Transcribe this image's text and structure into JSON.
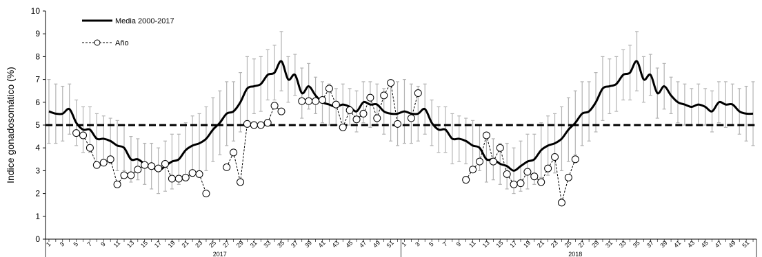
{
  "chart_data": {
    "type": "line",
    "ylabel": "Indice gonadosomático (%)",
    "xlabel": "",
    "ylim": [
      0,
      10
    ],
    "yticks": [
      "0",
      "1",
      "2",
      "3",
      "4",
      "5",
      "6",
      "7",
      "8",
      "9",
      "10"
    ],
    "x_range": [
      1,
      104
    ],
    "year_labels": [
      {
        "label": "2017",
        "week_index": 26
      },
      {
        "label": "2018",
        "week_index": 78
      }
    ],
    "x_tick_labels": [
      {
        "week": 1,
        "label": "1"
      },
      {
        "week": 3,
        "label": "3"
      },
      {
        "week": 5,
        "label": "5"
      },
      {
        "week": 7,
        "label": "7"
      },
      {
        "week": 9,
        "label": "9"
      },
      {
        "week": 11,
        "label": "11"
      },
      {
        "week": 13,
        "label": "13"
      },
      {
        "week": 15,
        "label": "15"
      },
      {
        "week": 17,
        "label": "17"
      },
      {
        "week": 19,
        "label": "19"
      },
      {
        "week": 21,
        "label": "21"
      },
      {
        "week": 23,
        "label": "23"
      },
      {
        "week": 25,
        "label": "25"
      },
      {
        "week": 27,
        "label": "27"
      },
      {
        "week": 29,
        "label": "29"
      },
      {
        "week": 31,
        "label": "31"
      },
      {
        "week": 33,
        "label": "33"
      },
      {
        "week": 35,
        "label": "35"
      },
      {
        "week": 37,
        "label": "37"
      },
      {
        "week": 39,
        "label": "39"
      },
      {
        "week": 41,
        "label": "41"
      },
      {
        "week": 43,
        "label": "43"
      },
      {
        "week": 45,
        "label": "45"
      },
      {
        "week": 47,
        "label": "47"
      },
      {
        "week": 49,
        "label": "49"
      },
      {
        "week": 51,
        "label": "51"
      },
      {
        "week": 53,
        "label": "1"
      },
      {
        "week": 55,
        "label": "3"
      },
      {
        "week": 57,
        "label": "5"
      },
      {
        "week": 59,
        "label": "7"
      },
      {
        "week": 61,
        "label": "9"
      },
      {
        "week": 63,
        "label": "11"
      },
      {
        "week": 65,
        "label": "13"
      },
      {
        "week": 67,
        "label": "15"
      },
      {
        "week": 69,
        "label": "17"
      },
      {
        "week": 71,
        "label": "19"
      },
      {
        "week": 73,
        "label": "21"
      },
      {
        "week": 75,
        "label": "23"
      },
      {
        "week": 77,
        "label": "25"
      },
      {
        "week": 79,
        "label": "27"
      },
      {
        "week": 81,
        "label": "29"
      },
      {
        "week": 83,
        "label": "31"
      },
      {
        "week": 85,
        "label": "33"
      },
      {
        "week": 87,
        "label": "35"
      },
      {
        "week": 89,
        "label": "37"
      },
      {
        "week": 91,
        "label": "39"
      },
      {
        "week": 93,
        "label": "41"
      },
      {
        "week": 95,
        "label": "43"
      },
      {
        "week": 97,
        "label": "45"
      },
      {
        "week": 99,
        "label": "47"
      },
      {
        "week": 101,
        "label": "49"
      },
      {
        "week": 103,
        "label": "51"
      }
    ],
    "reference_line": {
      "value": 5,
      "segments": [
        [
          1,
          25
        ],
        [
          26,
          77
        ],
        [
          78,
          104
        ]
      ]
    },
    "colors": {
      "mean": "#000000",
      "error": "#b3b3b3",
      "year": "#000000"
    },
    "series": [
      {
        "name": "Media 2000-2017",
        "style": "solid",
        "mean": [
          5.6,
          5.5,
          5.5,
          5.7,
          5.1,
          4.8,
          4.8,
          4.4,
          4.4,
          4.3,
          4.1,
          4.0,
          3.5,
          3.5,
          3.3,
          3.2,
          3.0,
          3.2,
          3.4,
          3.5,
          3.9,
          4.1,
          4.2,
          4.4,
          4.8,
          5.1,
          5.5,
          5.6,
          6.0,
          6.6,
          6.7,
          6.8,
          7.2,
          7.3,
          7.8,
          7.0,
          7.2,
          6.4,
          6.7,
          6.3,
          6.0,
          5.9,
          5.8,
          5.9,
          5.8,
          5.6,
          6.0,
          5.9,
          5.9,
          5.6,
          5.5,
          5.5,
          5.6,
          5.5,
          5.5,
          5.7,
          5.1,
          4.8,
          4.8,
          4.4,
          4.4,
          4.3,
          4.1,
          4.0,
          3.5,
          3.5,
          3.3,
          3.2,
          3.0,
          3.2,
          3.4,
          3.5,
          3.9,
          4.1,
          4.2,
          4.4,
          4.8,
          5.1,
          5.5,
          5.6,
          6.0,
          6.6,
          6.7,
          6.8,
          7.2,
          7.3,
          7.8,
          7.0,
          7.2,
          6.4,
          6.7,
          6.3,
          6.0,
          5.9,
          5.8,
          5.9,
          5.8,
          5.6,
          6.0,
          5.9,
          5.9,
          5.6,
          5.5,
          5.5
        ],
        "error": [
          1.4,
          1.3,
          1.2,
          1.1,
          1.0,
          1.0,
          1.0,
          1.1,
          1.0,
          1.0,
          1.1,
          1.0,
          1.0,
          0.9,
          0.9,
          1.0,
          1.0,
          1.1,
          1.2,
          1.1,
          1.2,
          1.3,
          1.3,
          1.4,
          1.4,
          1.4,
          1.4,
          1.3,
          1.3,
          1.4,
          1.2,
          1.2,
          1.1,
          1.2,
          1.3,
          1.0,
          0.9,
          1.1,
          1.0,
          0.8,
          0.9,
          0.9,
          0.8,
          0.9,
          0.8,
          0.9,
          0.9,
          1.0,
          0.9,
          1.0,
          1.2,
          1.4,
          1.4,
          1.3,
          1.2,
          1.1,
          1.0,
          1.0,
          1.0,
          1.1,
          1.0,
          1.0,
          1.1,
          1.0,
          1.0,
          0.9,
          0.9,
          1.0,
          1.0,
          1.1,
          1.2,
          1.1,
          1.2,
          1.3,
          1.3,
          1.4,
          1.4,
          1.4,
          1.4,
          1.3,
          1.3,
          1.4,
          1.2,
          1.2,
          1.1,
          1.2,
          1.3,
          1.0,
          0.9,
          1.1,
          1.0,
          0.8,
          0.9,
          0.9,
          0.8,
          0.9,
          0.8,
          0.9,
          0.9,
          1.0,
          0.9,
          1.0,
          1.2,
          1.4
        ]
      },
      {
        "name": "Año",
        "style": "dashed-circle",
        "points": [
          {
            "x": 5,
            "y": 4.65
          },
          {
            "x": 6,
            "y": 4.55
          },
          {
            "x": 7,
            "y": 4.0
          },
          {
            "x": 8,
            "y": 3.25
          },
          {
            "x": 9,
            "y": 3.35
          },
          {
            "x": 10,
            "y": 3.5
          },
          {
            "x": 11,
            "y": 2.4
          },
          {
            "x": 12,
            "y": 2.8
          },
          {
            "x": 13,
            "y": 2.8
          },
          {
            "x": 14,
            "y": 3.05
          },
          {
            "x": 15,
            "y": 3.25
          },
          {
            "x": 16,
            "y": 3.2
          },
          {
            "x": 17,
            "y": 3.1
          },
          {
            "x": 18,
            "y": 3.3
          },
          {
            "x": 19,
            "y": 2.65
          },
          {
            "x": 20,
            "y": 2.65
          },
          {
            "x": 21,
            "y": 2.7
          },
          {
            "x": 22,
            "y": 2.9
          },
          {
            "x": 23,
            "y": 2.85
          },
          {
            "x": 24,
            "y": 2.0
          },
          {
            "x": 27,
            "y": 3.15
          },
          {
            "x": 28,
            "y": 3.8
          },
          {
            "x": 29,
            "y": 2.5
          },
          {
            "x": 30,
            "y": 5.05
          },
          {
            "x": 31,
            "y": 5.0
          },
          {
            "x": 32,
            "y": 5.0
          },
          {
            "x": 33,
            "y": 5.1
          },
          {
            "x": 34,
            "y": 5.85
          },
          {
            "x": 35,
            "y": 5.6
          },
          {
            "x": 38,
            "y": 6.05
          },
          {
            "x": 39,
            "y": 6.05
          },
          {
            "x": 40,
            "y": 6.05
          },
          {
            "x": 41,
            "y": 6.1
          },
          {
            "x": 42,
            "y": 6.6
          },
          {
            "x": 43,
            "y": 5.9
          },
          {
            "x": 44,
            "y": 4.9
          },
          {
            "x": 45,
            "y": 5.65
          },
          {
            "x": 46,
            "y": 5.25
          },
          {
            "x": 47,
            "y": 5.5
          },
          {
            "x": 48,
            "y": 6.2
          },
          {
            "x": 49,
            "y": 5.3
          },
          {
            "x": 50,
            "y": 6.3
          },
          {
            "x": 51,
            "y": 6.85
          },
          {
            "x": 52,
            "y": 5.05
          },
          {
            "x": 54,
            "y": 5.3
          },
          {
            "x": 55,
            "y": 6.4
          },
          {
            "x": 62,
            "y": 2.6
          },
          {
            "x": 63,
            "y": 3.05
          },
          {
            "x": 64,
            "y": 3.4
          },
          {
            "x": 65,
            "y": 4.55
          },
          {
            "x": 66,
            "y": 3.4
          },
          {
            "x": 67,
            "y": 4.0
          },
          {
            "x": 68,
            "y": 2.85
          },
          {
            "x": 69,
            "y": 2.4
          },
          {
            "x": 70,
            "y": 2.45
          },
          {
            "x": 71,
            "y": 2.95
          },
          {
            "x": 72,
            "y": 2.75
          },
          {
            "x": 73,
            "y": 2.5
          },
          {
            "x": 74,
            "y": 3.1
          },
          {
            "x": 75,
            "y": 3.6
          },
          {
            "x": 76,
            "y": 1.6
          },
          {
            "x": 77,
            "y": 2.7
          },
          {
            "x": 78,
            "y": 3.5
          }
        ]
      }
    ],
    "legend": {
      "position": "top-left",
      "mean_label": "Media 2000-2017",
      "year_label": "Año"
    }
  }
}
